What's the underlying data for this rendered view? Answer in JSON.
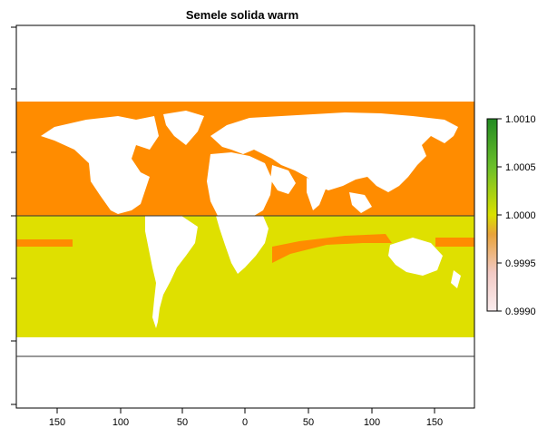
{
  "title": "Semele solida warm",
  "x_axis": {
    "tick_labels": [
      "150",
      "100",
      "50",
      "0",
      "50",
      "100",
      "150"
    ],
    "tick_values": [
      -150,
      -100,
      -50,
      0,
      50,
      100,
      150
    ]
  },
  "y_axis": {
    "tick_labels": [
      "",
      "",
      "",
      "",
      "",
      "",
      ""
    ],
    "range": [
      -90,
      90
    ]
  },
  "reference_lines": [
    {
      "name": "equator",
      "lat": 0
    },
    {
      "name": "southern-limit",
      "lat": -60
    }
  ],
  "legend": {
    "type": "continuous",
    "min": 0.999,
    "max": 1.001,
    "tick_labels": [
      "1.0010",
      "1.0005",
      "1.0000",
      "0.9995",
      "0.9990"
    ],
    "colors": [
      "#228B22",
      "#6BBF2A",
      "#D9E000",
      "#E8A33A",
      "#F2C9C4",
      "#FBEDEE"
    ]
  },
  "chart_data": {
    "type": "heatmap",
    "title": "Semele solida warm",
    "xlabel": "",
    "ylabel": "",
    "xlim": [
      -180,
      180
    ],
    "ylim": [
      -90,
      90
    ],
    "value_colors": {
      "0.9995": "#FF8C00",
      "1.0000": "#DFE000"
    },
    "regions": [
      {
        "label": "northern-hemisphere-ocean",
        "lat_range": [
          0,
          72
        ],
        "value": 0.9995
      },
      {
        "label": "southern-hemisphere-ocean",
        "lat_range": [
          -60,
          0
        ],
        "value": 1.0
      },
      {
        "label": "southern-band-edge",
        "lat_range": [
          -5,
          -2
        ],
        "value": 0.9995
      }
    ],
    "legend_range": [
      0.999,
      1.001
    ],
    "grid": false
  }
}
